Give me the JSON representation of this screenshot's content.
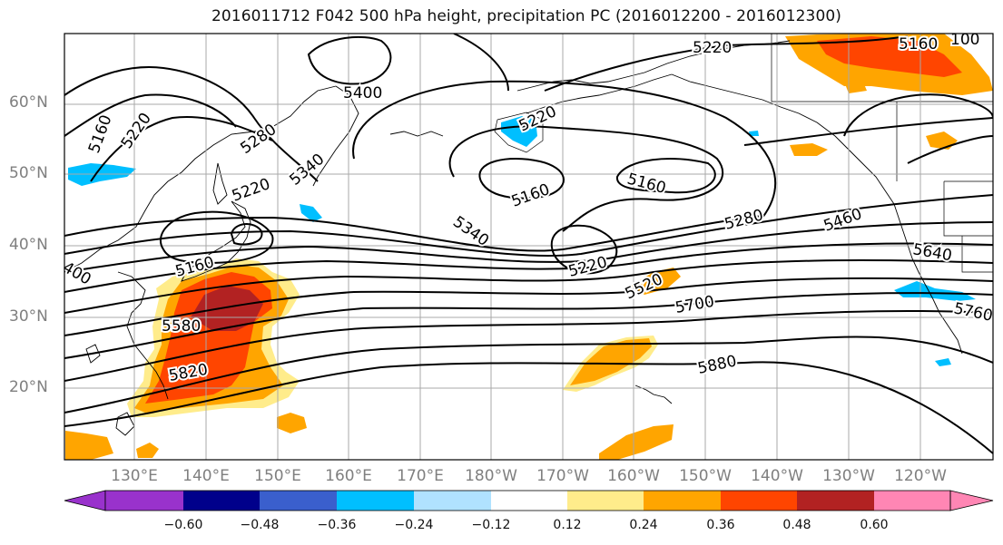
{
  "title": "2016011712 F042 500 hPa height, precipitation PC (2016012200 - 2016012300)",
  "lat_labels": [
    "60°N",
    "50°N",
    "40°N",
    "30°N",
    "20°N"
  ],
  "lon_labels": [
    "130°E",
    "140°E",
    "150°E",
    "160°E",
    "170°E",
    "180°W",
    "170°W",
    "160°W",
    "150°W",
    "140°W",
    "130°W",
    "120°W"
  ],
  "contour_labels": [
    "5160",
    "5220",
    "5280",
    "5340",
    "5400",
    "5460",
    "5520",
    "5580",
    "5640",
    "5700",
    "5760",
    "5820",
    "5880"
  ],
  "colorbar": {
    "ticks": [
      "−0.60",
      "−0.48",
      "−0.36",
      "−0.24",
      "−0.12",
      "0.12",
      "0.24",
      "0.36",
      "0.48",
      "0.60"
    ],
    "colors": [
      "#9932cc",
      "#00008b",
      "#3a5fcd",
      "#00bfff",
      "#b0e2ff",
      "#ffffff",
      "#ffec8b",
      "#ffa500",
      "#ff4500",
      "#b22222",
      "#ff86b4"
    ]
  },
  "colors": {
    "contour": "#000000",
    "grid": "#a8a8a8",
    "coast": "#000000",
    "tick_label": "#7f7f7f"
  }
}
